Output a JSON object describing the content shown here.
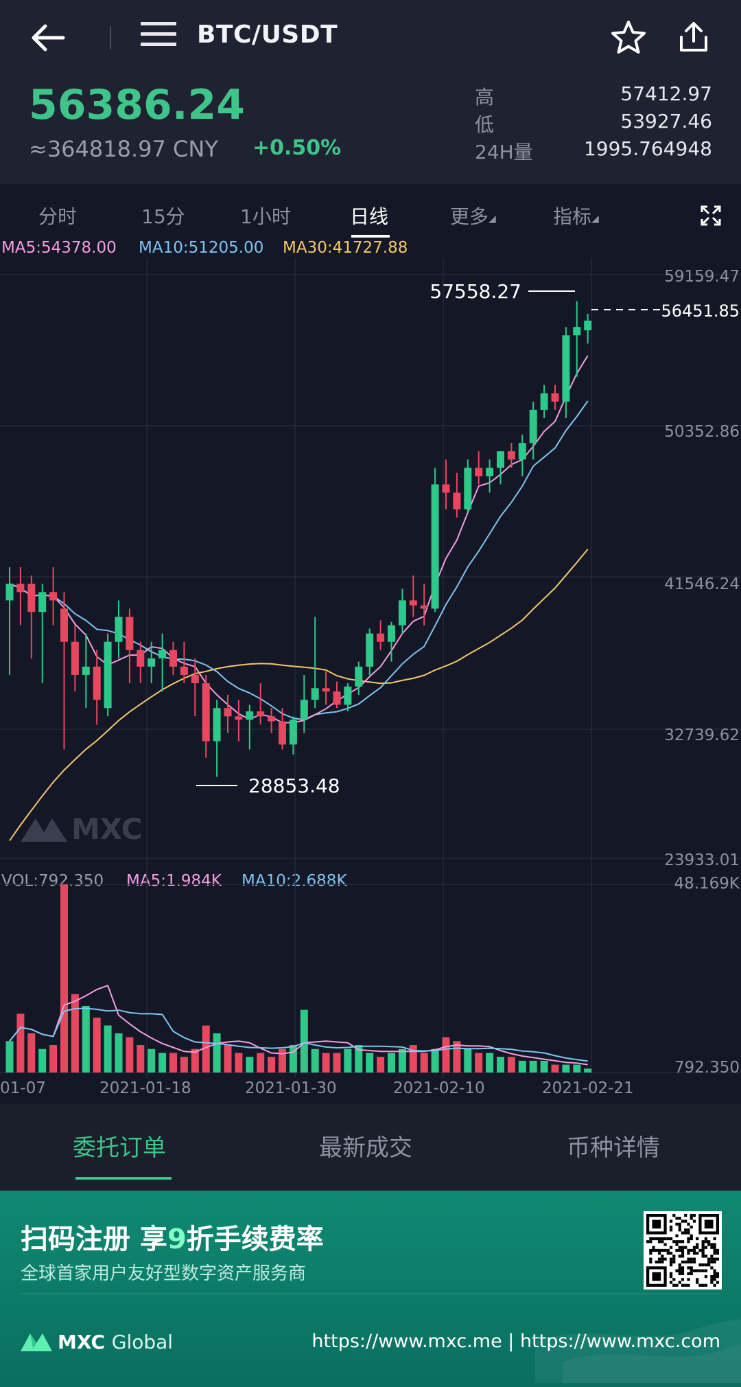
{
  "header": {
    "title": "BTC/USDT",
    "back_icon": "arrow-left-icon",
    "menu_icon": "hamburger-menu-icon",
    "favorite_icon": "star-icon",
    "share_icon": "share-icon"
  },
  "ticker": {
    "last_price": "56386.24",
    "cny_price": "≈364818.97 CNY",
    "change": "+0.50%",
    "stats": [
      {
        "label": "高",
        "value": "57412.97"
      },
      {
        "label": "低",
        "value": "53927.46"
      },
      {
        "label": "24H量",
        "value": "1995.764948"
      }
    ]
  },
  "timeframe_tabs": [
    {
      "label": "分时",
      "active": false
    },
    {
      "label": "15分",
      "active": false
    },
    {
      "label": "1小时",
      "active": false
    },
    {
      "label": "日线",
      "active": true
    },
    {
      "label": "更多",
      "active": false
    },
    {
      "label": "指标",
      "active": false
    }
  ],
  "ma_legend": {
    "ma5": "MA5:54378.00",
    "ma10": "MA10:51205.00",
    "ma30": "MA30:41727.88"
  },
  "price_axis": [
    "59159.47",
    "50352.86",
    "41546.24",
    "32739.62",
    "23933.01"
  ],
  "annotations": {
    "high_label": "57558.27",
    "low_label": "28853.48",
    "current_label": "56451.85"
  },
  "volume_legend": {
    "vol": "VOL:792.350",
    "ma5": "MA5:1.984K",
    "ma10": "MA10:2.688K"
  },
  "volume_axis": {
    "top": "48.169K",
    "bottom": "792.350"
  },
  "date_axis": [
    "01-07",
    "2021-01-18",
    "2021-01-30",
    "2021-02-10",
    "2021-02-21"
  ],
  "watermark": "MXC",
  "colors": {
    "up": "#2ec98a",
    "down": "#e8485f",
    "ma5": "#f29ee0",
    "ma10": "#7fc4f2",
    "ma30": "#f5c76a"
  },
  "chart_data": {
    "type": "candlestick",
    "ylim": [
      23933.01,
      59159.47
    ],
    "candles": [
      {
        "o": 39500,
        "h": 41500,
        "l": 35000,
        "c": 40500
      },
      {
        "o": 40500,
        "h": 41500,
        "l": 38000,
        "c": 40000
      },
      {
        "o": 40500,
        "h": 41000,
        "l": 36000,
        "c": 38800
      },
      {
        "o": 38800,
        "h": 40500,
        "l": 34500,
        "c": 40000
      },
      {
        "o": 40000,
        "h": 41500,
        "l": 38000,
        "c": 39500
      },
      {
        "o": 39000,
        "h": 40000,
        "l": 30500,
        "c": 37000
      },
      {
        "o": 37000,
        "h": 38000,
        "l": 34000,
        "c": 35000
      },
      {
        "o": 35000,
        "h": 37500,
        "l": 33000,
        "c": 35500
      },
      {
        "o": 35500,
        "h": 36500,
        "l": 32000,
        "c": 33500
      },
      {
        "o": 33000,
        "h": 37500,
        "l": 32500,
        "c": 37000
      },
      {
        "o": 37000,
        "h": 39500,
        "l": 36000,
        "c": 38500
      },
      {
        "o": 38500,
        "h": 39000,
        "l": 34500,
        "c": 36500
      },
      {
        "o": 36500,
        "h": 37000,
        "l": 34500,
        "c": 35500
      },
      {
        "o": 35500,
        "h": 37000,
        "l": 34500,
        "c": 36000
      },
      {
        "o": 36000,
        "h": 37500,
        "l": 34000,
        "c": 36500
      },
      {
        "o": 36500,
        "h": 37000,
        "l": 35000,
        "c": 35500
      },
      {
        "o": 35500,
        "h": 37000,
        "l": 34500,
        "c": 35000
      },
      {
        "o": 35000,
        "h": 36000,
        "l": 32500,
        "c": 34500
      },
      {
        "o": 34500,
        "h": 35000,
        "l": 30000,
        "c": 31000
      },
      {
        "o": 31000,
        "h": 33500,
        "l": 28850,
        "c": 33000
      },
      {
        "o": 33000,
        "h": 33800,
        "l": 31500,
        "c": 32500
      },
      {
        "o": 32500,
        "h": 33500,
        "l": 31000,
        "c": 32300
      },
      {
        "o": 32300,
        "h": 33200,
        "l": 30500,
        "c": 32800
      },
      {
        "o": 32800,
        "h": 34500,
        "l": 32000,
        "c": 32500
      },
      {
        "o": 32500,
        "h": 33000,
        "l": 31500,
        "c": 32200
      },
      {
        "o": 32200,
        "h": 33000,
        "l": 30500,
        "c": 30800
      },
      {
        "o": 30800,
        "h": 32500,
        "l": 30200,
        "c": 32300
      },
      {
        "o": 32300,
        "h": 35000,
        "l": 31500,
        "c": 33500
      },
      {
        "o": 33500,
        "h": 38500,
        "l": 33000,
        "c": 34200
      },
      {
        "o": 34200,
        "h": 35200,
        "l": 33200,
        "c": 34000
      },
      {
        "o": 34000,
        "h": 34600,
        "l": 33000,
        "c": 33200
      },
      {
        "o": 33200,
        "h": 34500,
        "l": 32800,
        "c": 34300
      },
      {
        "o": 34300,
        "h": 35800,
        "l": 33800,
        "c": 35500
      },
      {
        "o": 35500,
        "h": 37800,
        "l": 35000,
        "c": 37500
      },
      {
        "o": 37500,
        "h": 38300,
        "l": 36500,
        "c": 37000
      },
      {
        "o": 37000,
        "h": 38200,
        "l": 35800,
        "c": 38000
      },
      {
        "o": 38000,
        "h": 40200,
        "l": 37500,
        "c": 39500
      },
      {
        "o": 39500,
        "h": 41000,
        "l": 38500,
        "c": 39200
      },
      {
        "o": 39200,
        "h": 40500,
        "l": 38000,
        "c": 39000
      },
      {
        "o": 39000,
        "h": 47500,
        "l": 38800,
        "c": 46500
      },
      {
        "o": 46500,
        "h": 48000,
        "l": 45000,
        "c": 46000
      },
      {
        "o": 46000,
        "h": 47200,
        "l": 44500,
        "c": 45000
      },
      {
        "o": 45000,
        "h": 48000,
        "l": 44800,
        "c": 47500
      },
      {
        "o": 47500,
        "h": 48500,
        "l": 46500,
        "c": 47000
      },
      {
        "o": 47000,
        "h": 48000,
        "l": 46000,
        "c": 47500
      },
      {
        "o": 47500,
        "h": 48500,
        "l": 46500,
        "c": 48500
      },
      {
        "o": 48500,
        "h": 49000,
        "l": 47500,
        "c": 48000
      },
      {
        "o": 48000,
        "h": 49500,
        "l": 47000,
        "c": 49000
      },
      {
        "o": 49000,
        "h": 51500,
        "l": 48000,
        "c": 51000
      },
      {
        "o": 51000,
        "h": 52500,
        "l": 50500,
        "c": 52000
      },
      {
        "o": 52000,
        "h": 52500,
        "l": 51000,
        "c": 51500
      },
      {
        "o": 51500,
        "h": 56000,
        "l": 50500,
        "c": 55500
      },
      {
        "o": 55500,
        "h": 57558,
        "l": 53000,
        "c": 56000
      },
      {
        "o": 55800,
        "h": 56800,
        "l": 55000,
        "c": 56386
      }
    ],
    "volumes": [
      8,
      15,
      10,
      6,
      7,
      48,
      20,
      17,
      14,
      12,
      10,
      9,
      7,
      6,
      5,
      5,
      4,
      6,
      12,
      10,
      7,
      5,
      4,
      5,
      4,
      6,
      7,
      16,
      6,
      5,
      5,
      6,
      7,
      5,
      4,
      5,
      6,
      7,
      5,
      6,
      9,
      8,
      6,
      5,
      5,
      4,
      4,
      3,
      3,
      3,
      2,
      2,
      2,
      1
    ]
  },
  "order_tabs": [
    {
      "label": "委托订单",
      "active": true
    },
    {
      "label": "最新成交",
      "active": false
    },
    {
      "label": "币种详情",
      "active": false
    }
  ],
  "banner": {
    "title_pre": "扫码注册 享",
    "title_hl": "9",
    "title_post": "折手续费率",
    "subtitle": "全球首家用户友好型数字资产服务商",
    "brand_name": "MXC",
    "brand_suffix": "Global",
    "urls": "https://www.mxc.me | https://www.mxc.com",
    "qr_icon": "qr-code-icon",
    "logo_icon": "mxc-logo-icon"
  }
}
